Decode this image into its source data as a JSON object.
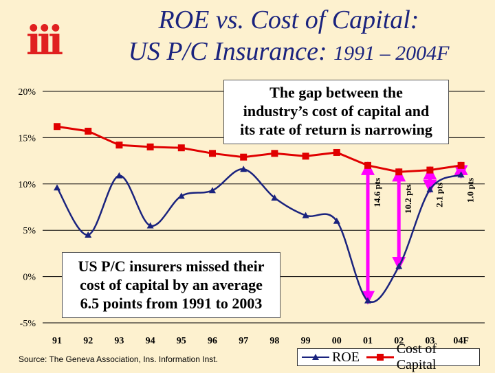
{
  "logo_text": "iii",
  "title": {
    "line1": "ROE vs. Cost of Capital:",
    "line2_main": "US P/C Insurance: ",
    "line2_years": "1991 – 2004F"
  },
  "callouts": {
    "top": [
      "The gap between the",
      "industry’s cost of capital and",
      "its rate of return is narrowing"
    ],
    "bottom": [
      "US P/C insurers missed their",
      "cost of capital by an average",
      "6.5 points from 1991 to 2003"
    ]
  },
  "source": "Source:  The Geneva Association, Ins. Information Inst.",
  "colors": {
    "roe": "#1a237e",
    "coc": "#e00000",
    "gap_arrow": "#ff00ff",
    "background": "#fdf1cf"
  },
  "chart_data": {
    "type": "line",
    "categories": [
      "91",
      "92",
      "93",
      "94",
      "95",
      "96",
      "97",
      "98",
      "99",
      "00",
      "01",
      "02",
      "03",
      "04F"
    ],
    "ylim": [
      -5,
      20
    ],
    "y_ticks": [
      {
        "value": 20,
        "label": "20%"
      },
      {
        "value": 15,
        "label": "15%"
      },
      {
        "value": 10,
        "label": "10%"
      },
      {
        "value": 5,
        "label": "5%"
      },
      {
        "value": 0,
        "label": "0%"
      },
      {
        "value": -5,
        "label": "-5%"
      }
    ],
    "legend_position": "bottom-right",
    "series": [
      {
        "name": "ROE",
        "values": [
          9.6,
          4.5,
          10.9,
          5.5,
          8.7,
          9.3,
          11.6,
          8.5,
          6.6,
          6.0,
          -2.6,
          1.1,
          9.4,
          11.0
        ]
      },
      {
        "name": "Cost of Capital",
        "values": [
          16.2,
          15.7,
          14.2,
          14.0,
          13.9,
          13.3,
          12.9,
          13.3,
          13.0,
          13.4,
          12.0,
          11.3,
          11.5,
          12.0
        ]
      }
    ],
    "gap_annotations": [
      {
        "category": "01",
        "label": "14.6 pts",
        "from": -2.6,
        "to": 12.0
      },
      {
        "category": "02",
        "label": "10.2 pts",
        "from": 1.1,
        "to": 11.3
      },
      {
        "category": "03",
        "label": "2.1 pts",
        "from": 9.4,
        "to": 11.5
      },
      {
        "category": "04F",
        "label": "1.0 pts",
        "from": 11.0,
        "to": 12.0
      }
    ]
  }
}
